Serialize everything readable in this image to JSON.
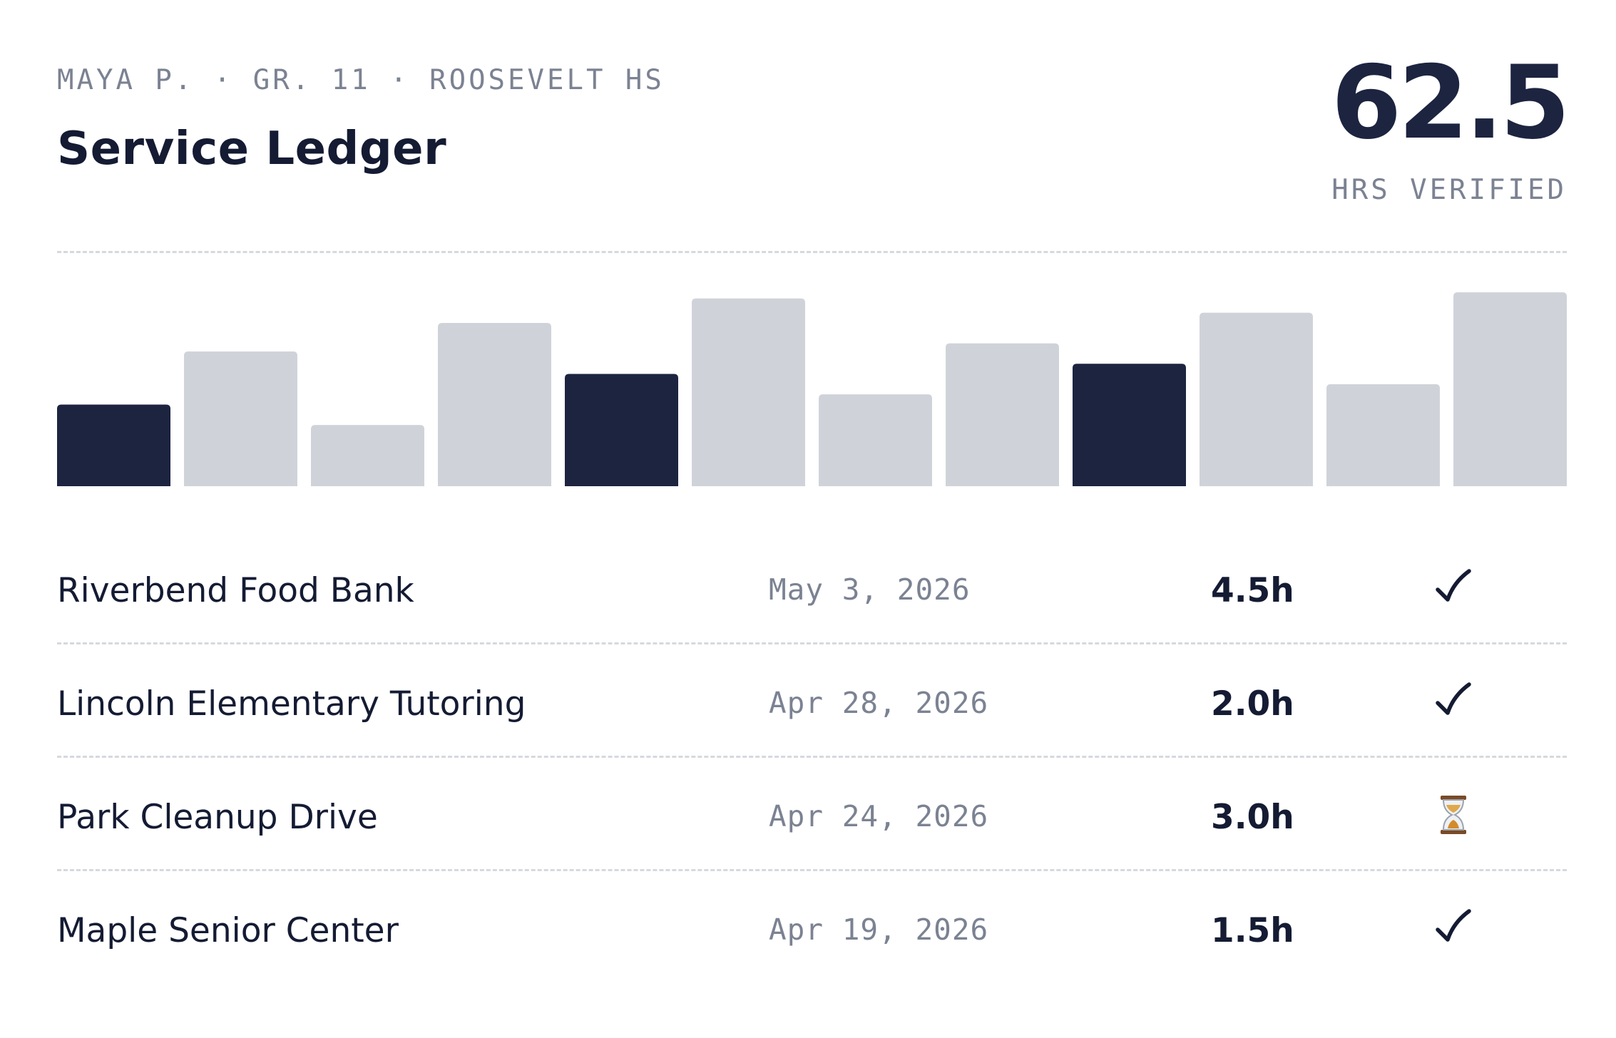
{
  "header": {
    "meta": "MAYA P. · GR. 11 · ROOSEVELT HS",
    "title": "Service Ledger",
    "total_hours": "62.5",
    "total_label": "HRS VERIFIED"
  },
  "colors": {
    "highlight_bar": "#1c2440",
    "muted_bar": "#cfd3d9",
    "divider": "#d6d9de"
  },
  "chart_data": {
    "type": "bar",
    "values": [
      2.0,
      3.3,
      1.5,
      4.0,
      2.75,
      4.6,
      2.25,
      3.5,
      3.0,
      4.25,
      2.5,
      4.75
    ],
    "highlighted": [
      true,
      false,
      false,
      false,
      true,
      false,
      false,
      false,
      true,
      false,
      false,
      false
    ],
    "ylim": [
      0,
      4.75
    ],
    "grid": false
  },
  "entries": [
    {
      "name": "Riverbend Food Bank",
      "date": "May 3, 2026",
      "hours": "4.5h",
      "status": "verified",
      "status_icon": "checkmark-icon"
    },
    {
      "name": "Lincoln Elementary Tutoring",
      "date": "Apr 28, 2026",
      "hours": "2.0h",
      "status": "verified",
      "status_icon": "checkmark-icon"
    },
    {
      "name": "Park Cleanup Drive",
      "date": "Apr 24, 2026",
      "hours": "3.0h",
      "status": "pending",
      "status_icon": "hourglass-icon"
    },
    {
      "name": "Maple Senior Center",
      "date": "Apr 19, 2026",
      "hours": "1.5h",
      "status": "verified",
      "status_icon": "checkmark-icon"
    }
  ]
}
